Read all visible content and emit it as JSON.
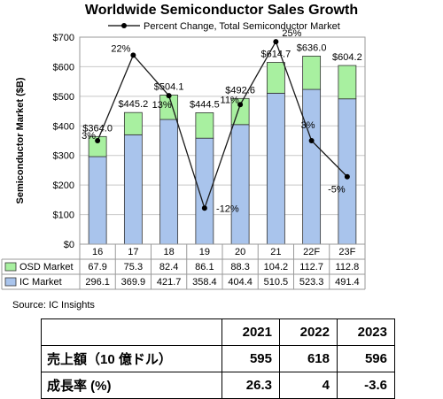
{
  "chart_data": {
    "type": "bar+line",
    "title": "Worldwide Semiconductor Sales Growth",
    "ylabel": "Semiconductor Market ($B)",
    "ylim": [
      0,
      700
    ],
    "yticks": [
      "$0",
      "$100",
      "$200",
      "$300",
      "$400",
      "$500",
      "$600",
      "$700"
    ],
    "categories": [
      "16",
      "17",
      "18",
      "19",
      "20",
      "21",
      "22F",
      "23F"
    ],
    "series": [
      {
        "name": "OSD Market",
        "values": [
          67.9,
          75.3,
          82.4,
          86.1,
          88.3,
          104.2,
          112.7,
          112.8
        ],
        "color": "#a8f0a0",
        "labels": [
          "67.9",
          "75.3",
          "82.4",
          "86.1",
          "88.3",
          "104.2",
          "112.7",
          "112.8"
        ]
      },
      {
        "name": "IC Market",
        "values": [
          296.1,
          369.9,
          421.7,
          358.4,
          404.4,
          510.5,
          523.3,
          491.4
        ],
        "color": "#a9c4ec",
        "labels": [
          "296.1",
          "369.9",
          "421.7",
          "358.4",
          "404.4",
          "510.5",
          "523.3",
          "491.4"
        ]
      }
    ],
    "totals": [
      "$364.0",
      "$445.2",
      "$504.1",
      "$444.5",
      "$492.6",
      "$614.7",
      "$636.0",
      "$604.2"
    ],
    "line": {
      "name": "Percent Change, Total Semiconductor Market",
      "values": [
        3,
        22,
        13,
        -12,
        11,
        25,
        3,
        -5
      ],
      "labels": [
        "3%",
        "22%",
        "13%",
        "-12%",
        "11%",
        "25%",
        "3%",
        "-5%"
      ],
      "ylim": [
        -20,
        26
      ]
    },
    "grid": true,
    "legend": "top",
    "source": "Source: IC Insights"
  },
  "summary_table": {
    "headers": [
      "",
      "2021",
      "2022",
      "2023"
    ],
    "rows": [
      {
        "label": "売上額（10 億ドル）",
        "values": [
          "595",
          "618",
          "596"
        ]
      },
      {
        "label": "成長率 (%)",
        "values": [
          "26.3",
          "4",
          "-3.6"
        ]
      }
    ]
  }
}
